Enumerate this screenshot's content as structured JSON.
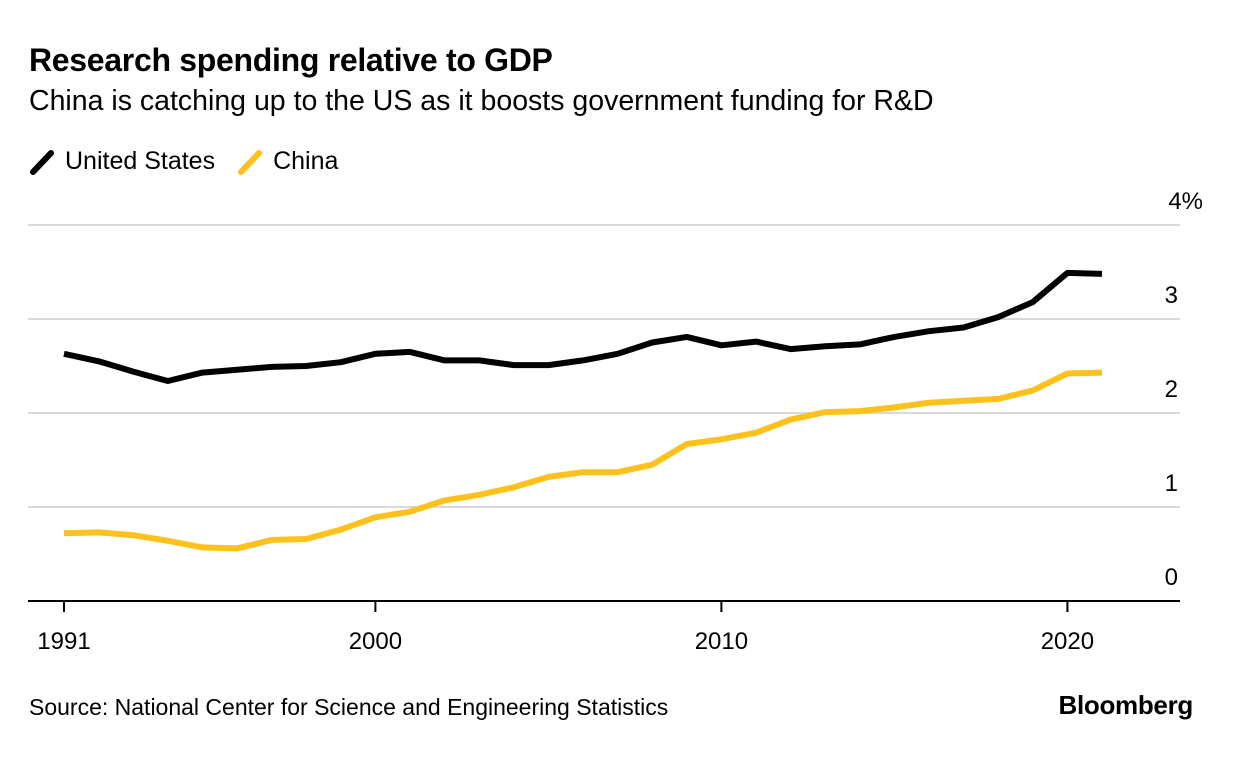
{
  "chart_data": {
    "type": "line",
    "title": "Research spending relative to GDP",
    "subtitle": "China is catching up to the US as it boosts government funding for R&D",
    "xlabel": "",
    "ylabel": "",
    "x": [
      1991,
      1992,
      1993,
      1994,
      1995,
      1996,
      1997,
      1998,
      1999,
      2000,
      2001,
      2002,
      2003,
      2004,
      2005,
      2006,
      2007,
      2008,
      2009,
      2010,
      2011,
      2012,
      2013,
      2014,
      2015,
      2016,
      2017,
      2018,
      2019,
      2020,
      2021
    ],
    "series": [
      {
        "name": "United States",
        "color": "#000000",
        "values": [
          2.63,
          2.55,
          2.44,
          2.34,
          2.43,
          2.46,
          2.49,
          2.5,
          2.54,
          2.63,
          2.65,
          2.56,
          2.56,
          2.51,
          2.51,
          2.56,
          2.63,
          2.75,
          2.81,
          2.72,
          2.76,
          2.68,
          2.71,
          2.73,
          2.81,
          2.87,
          2.91,
          3.02,
          3.18,
          3.49,
          3.48
        ]
      },
      {
        "name": "China",
        "color": "#FCC11C",
        "values": [
          0.72,
          0.73,
          0.7,
          0.64,
          0.57,
          0.56,
          0.65,
          0.66,
          0.76,
          0.89,
          0.95,
          1.07,
          1.13,
          1.21,
          1.32,
          1.37,
          1.37,
          1.45,
          1.67,
          1.72,
          1.79,
          1.93,
          2.01,
          2.02,
          2.06,
          2.11,
          2.13,
          2.15,
          2.24,
          2.42,
          2.43
        ]
      }
    ],
    "ylim": [
      0,
      4
    ],
    "xlim": [
      1990,
      2023
    ],
    "y_ticks": [
      0,
      1,
      2,
      3,
      4
    ],
    "y_tick_labels": [
      "0",
      "1",
      "2",
      "3",
      "4%"
    ],
    "x_ticks": [
      1991,
      2000,
      2010,
      2020
    ],
    "x_tick_labels": [
      "1991",
      "2000",
      "2010",
      "2020"
    ],
    "grid": true,
    "legend_position": "top-left",
    "y_axis_side": "right"
  },
  "legend": [
    {
      "label": "United States",
      "color": "#000000"
    },
    {
      "label": "China",
      "color": "#FCC11C"
    }
  ],
  "footer": {
    "source": "Source: National Center for Science and Engineering Statistics",
    "brand": "Bloomberg"
  }
}
